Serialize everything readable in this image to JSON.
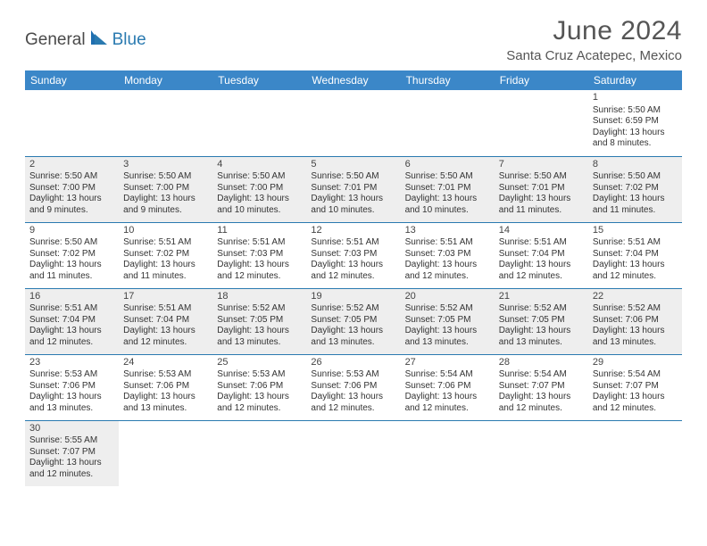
{
  "brand": {
    "text_general": "General",
    "text_blue": "Blue",
    "sail_color": "#1f6fb0",
    "general_color": "#4a4a4a",
    "blue_color": "#2a7ab0"
  },
  "header": {
    "month_title": "June 2024",
    "location": "Santa Cruz Acatepec, Mexico",
    "title_color": "#555555",
    "title_fontsize": 30,
    "location_fontsize": 15
  },
  "calendar": {
    "header_bg": "#3b87c8",
    "header_fg": "#ffffff",
    "cell_border_color": "#2a7ab0",
    "shaded_bg": "#eeeeee",
    "text_color": "#333333",
    "day_fontsize": 11,
    "cell_fontsize": 10,
    "columns": [
      "Sunday",
      "Monday",
      "Tuesday",
      "Wednesday",
      "Thursday",
      "Friday",
      "Saturday"
    ],
    "weeks": [
      [
        {
          "empty": true
        },
        {
          "empty": true
        },
        {
          "empty": true
        },
        {
          "empty": true
        },
        {
          "empty": true
        },
        {
          "empty": true
        },
        {
          "day": "1",
          "sunrise": "Sunrise: 5:50 AM",
          "sunset": "Sunset: 6:59 PM",
          "daylight1": "Daylight: 13 hours",
          "daylight2": "and 8 minutes."
        }
      ],
      [
        {
          "day": "2",
          "sunrise": "Sunrise: 5:50 AM",
          "sunset": "Sunset: 7:00 PM",
          "daylight1": "Daylight: 13 hours",
          "daylight2": "and 9 minutes.",
          "shaded": true
        },
        {
          "day": "3",
          "sunrise": "Sunrise: 5:50 AM",
          "sunset": "Sunset: 7:00 PM",
          "daylight1": "Daylight: 13 hours",
          "daylight2": "and 9 minutes.",
          "shaded": true
        },
        {
          "day": "4",
          "sunrise": "Sunrise: 5:50 AM",
          "sunset": "Sunset: 7:00 PM",
          "daylight1": "Daylight: 13 hours",
          "daylight2": "and 10 minutes.",
          "shaded": true
        },
        {
          "day": "5",
          "sunrise": "Sunrise: 5:50 AM",
          "sunset": "Sunset: 7:01 PM",
          "daylight1": "Daylight: 13 hours",
          "daylight2": "and 10 minutes.",
          "shaded": true
        },
        {
          "day": "6",
          "sunrise": "Sunrise: 5:50 AM",
          "sunset": "Sunset: 7:01 PM",
          "daylight1": "Daylight: 13 hours",
          "daylight2": "and 10 minutes.",
          "shaded": true
        },
        {
          "day": "7",
          "sunrise": "Sunrise: 5:50 AM",
          "sunset": "Sunset: 7:01 PM",
          "daylight1": "Daylight: 13 hours",
          "daylight2": "and 11 minutes.",
          "shaded": true
        },
        {
          "day": "8",
          "sunrise": "Sunrise: 5:50 AM",
          "sunset": "Sunset: 7:02 PM",
          "daylight1": "Daylight: 13 hours",
          "daylight2": "and 11 minutes.",
          "shaded": true
        }
      ],
      [
        {
          "day": "9",
          "sunrise": "Sunrise: 5:50 AM",
          "sunset": "Sunset: 7:02 PM",
          "daylight1": "Daylight: 13 hours",
          "daylight2": "and 11 minutes."
        },
        {
          "day": "10",
          "sunrise": "Sunrise: 5:51 AM",
          "sunset": "Sunset: 7:02 PM",
          "daylight1": "Daylight: 13 hours",
          "daylight2": "and 11 minutes."
        },
        {
          "day": "11",
          "sunrise": "Sunrise: 5:51 AM",
          "sunset": "Sunset: 7:03 PM",
          "daylight1": "Daylight: 13 hours",
          "daylight2": "and 12 minutes."
        },
        {
          "day": "12",
          "sunrise": "Sunrise: 5:51 AM",
          "sunset": "Sunset: 7:03 PM",
          "daylight1": "Daylight: 13 hours",
          "daylight2": "and 12 minutes."
        },
        {
          "day": "13",
          "sunrise": "Sunrise: 5:51 AM",
          "sunset": "Sunset: 7:03 PM",
          "daylight1": "Daylight: 13 hours",
          "daylight2": "and 12 minutes."
        },
        {
          "day": "14",
          "sunrise": "Sunrise: 5:51 AM",
          "sunset": "Sunset: 7:04 PM",
          "daylight1": "Daylight: 13 hours",
          "daylight2": "and 12 minutes."
        },
        {
          "day": "15",
          "sunrise": "Sunrise: 5:51 AM",
          "sunset": "Sunset: 7:04 PM",
          "daylight1": "Daylight: 13 hours",
          "daylight2": "and 12 minutes."
        }
      ],
      [
        {
          "day": "16",
          "sunrise": "Sunrise: 5:51 AM",
          "sunset": "Sunset: 7:04 PM",
          "daylight1": "Daylight: 13 hours",
          "daylight2": "and 12 minutes.",
          "shaded": true
        },
        {
          "day": "17",
          "sunrise": "Sunrise: 5:51 AM",
          "sunset": "Sunset: 7:04 PM",
          "daylight1": "Daylight: 13 hours",
          "daylight2": "and 12 minutes.",
          "shaded": true
        },
        {
          "day": "18",
          "sunrise": "Sunrise: 5:52 AM",
          "sunset": "Sunset: 7:05 PM",
          "daylight1": "Daylight: 13 hours",
          "daylight2": "and 13 minutes.",
          "shaded": true
        },
        {
          "day": "19",
          "sunrise": "Sunrise: 5:52 AM",
          "sunset": "Sunset: 7:05 PM",
          "daylight1": "Daylight: 13 hours",
          "daylight2": "and 13 minutes.",
          "shaded": true
        },
        {
          "day": "20",
          "sunrise": "Sunrise: 5:52 AM",
          "sunset": "Sunset: 7:05 PM",
          "daylight1": "Daylight: 13 hours",
          "daylight2": "and 13 minutes.",
          "shaded": true
        },
        {
          "day": "21",
          "sunrise": "Sunrise: 5:52 AM",
          "sunset": "Sunset: 7:05 PM",
          "daylight1": "Daylight: 13 hours",
          "daylight2": "and 13 minutes.",
          "shaded": true
        },
        {
          "day": "22",
          "sunrise": "Sunrise: 5:52 AM",
          "sunset": "Sunset: 7:06 PM",
          "daylight1": "Daylight: 13 hours",
          "daylight2": "and 13 minutes.",
          "shaded": true
        }
      ],
      [
        {
          "day": "23",
          "sunrise": "Sunrise: 5:53 AM",
          "sunset": "Sunset: 7:06 PM",
          "daylight1": "Daylight: 13 hours",
          "daylight2": "and 13 minutes."
        },
        {
          "day": "24",
          "sunrise": "Sunrise: 5:53 AM",
          "sunset": "Sunset: 7:06 PM",
          "daylight1": "Daylight: 13 hours",
          "daylight2": "and 13 minutes."
        },
        {
          "day": "25",
          "sunrise": "Sunrise: 5:53 AM",
          "sunset": "Sunset: 7:06 PM",
          "daylight1": "Daylight: 13 hours",
          "daylight2": "and 12 minutes."
        },
        {
          "day": "26",
          "sunrise": "Sunrise: 5:53 AM",
          "sunset": "Sunset: 7:06 PM",
          "daylight1": "Daylight: 13 hours",
          "daylight2": "and 12 minutes."
        },
        {
          "day": "27",
          "sunrise": "Sunrise: 5:54 AM",
          "sunset": "Sunset: 7:06 PM",
          "daylight1": "Daylight: 13 hours",
          "daylight2": "and 12 minutes."
        },
        {
          "day": "28",
          "sunrise": "Sunrise: 5:54 AM",
          "sunset": "Sunset: 7:07 PM",
          "daylight1": "Daylight: 13 hours",
          "daylight2": "and 12 minutes."
        },
        {
          "day": "29",
          "sunrise": "Sunrise: 5:54 AM",
          "sunset": "Sunset: 7:07 PM",
          "daylight1": "Daylight: 13 hours",
          "daylight2": "and 12 minutes."
        }
      ],
      [
        {
          "day": "30",
          "sunrise": "Sunrise: 5:55 AM",
          "sunset": "Sunset: 7:07 PM",
          "daylight1": "Daylight: 13 hours",
          "daylight2": "and 12 minutes.",
          "shaded": true,
          "noborder": true
        },
        {
          "empty": true,
          "noborder": true
        },
        {
          "empty": true,
          "noborder": true
        },
        {
          "empty": true,
          "noborder": true
        },
        {
          "empty": true,
          "noborder": true
        },
        {
          "empty": true,
          "noborder": true
        },
        {
          "empty": true,
          "noborder": true
        }
      ]
    ]
  }
}
